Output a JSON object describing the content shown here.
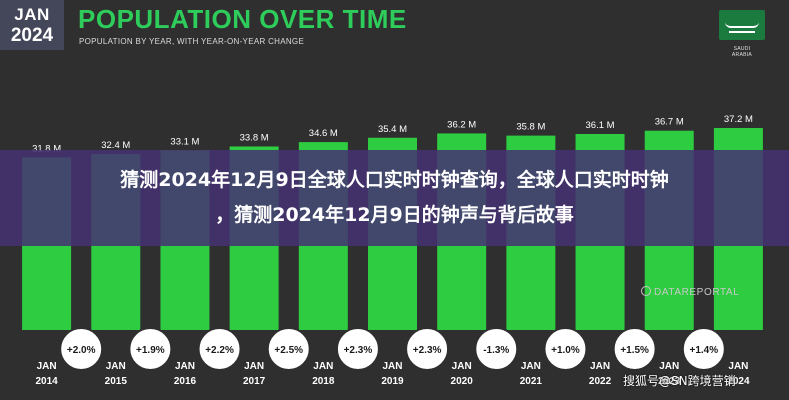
{
  "badge": {
    "month": "JAN",
    "year": "2024"
  },
  "header": {
    "title": "POPULATION OVER TIME",
    "subtitle": "POPULATION BY YEAR, WITH YEAR-ON-YEAR CHANGE"
  },
  "flag": {
    "label_line1": "SAUDI",
    "label_line2": "ARABIA",
    "icon": "saudi-arabia-flag-icon"
  },
  "banner": {
    "line1": "猜测2024年12月9日全球人口实时时钟查询，全球人口实时时钟",
    "line2": "，猜测2024年12月9日的钟声与背后故事"
  },
  "source": "DATAREPORTAL",
  "watermark": "搜狐号@SN跨境营销",
  "colors": {
    "bar": "#2ecc40",
    "background": "#2f2f2f",
    "title": "#2ecc5a",
    "circle": "#ffffff"
  },
  "chart_data": {
    "type": "bar",
    "categories": [
      "JAN 2014",
      "JAN 2015",
      "JAN 2016",
      "JAN 2017",
      "JAN 2018",
      "JAN 2019",
      "JAN 2020",
      "JAN 2021",
      "JAN 2022",
      "JAN 2023",
      "JAN 2024"
    ],
    "x_month": "JAN",
    "x_years": [
      "2014",
      "2015",
      "2016",
      "2017",
      "2018",
      "2019",
      "2020",
      "2021",
      "2022",
      "2023",
      "2024"
    ],
    "values": [
      31.8,
      32.4,
      33.1,
      33.8,
      34.6,
      35.4,
      36.2,
      35.8,
      36.1,
      36.7,
      37.2
    ],
    "value_labels": [
      "31.8 M",
      "32.4 M",
      "33.1 M",
      "33.8 M",
      "34.6 M",
      "35.4 M",
      "36.2 M",
      "35.8 M",
      "36.1 M",
      "36.7 M",
      "37.2 M"
    ],
    "yoy_change": [
      "+2.0%",
      "+1.9%",
      "+2.2%",
      "+2.5%",
      "+2.3%",
      "+2.3%",
      "-1.3%",
      "+1.0%",
      "+1.5%",
      "+1.4%"
    ],
    "ylim": [
      0,
      37.2
    ]
  }
}
